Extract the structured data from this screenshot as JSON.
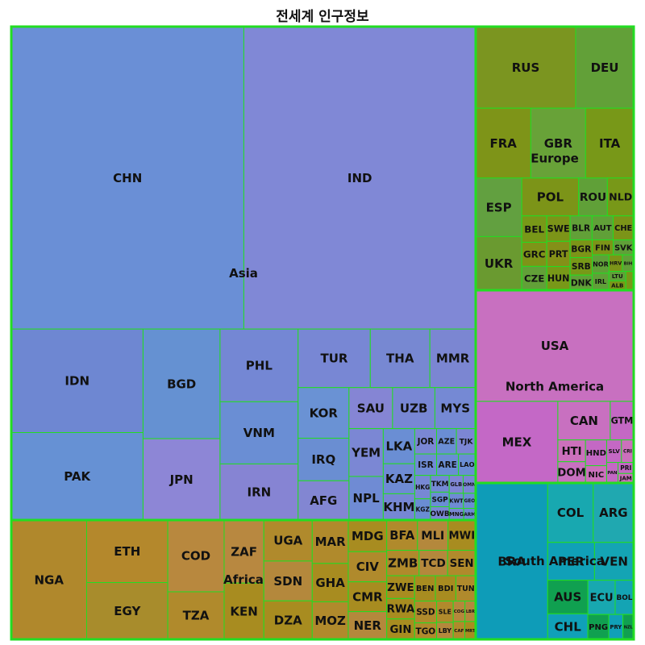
{
  "chart_data": {
    "type": "treemap",
    "title": "전세계 인구정보",
    "border_color": "#22dd22",
    "groups": [
      {
        "name": "Asia",
        "color": "#6b8fd6",
        "items": [
          {
            "code": "CHN",
            "value": 1412.0,
            "color": "#6a8fd6"
          },
          {
            "code": "IND",
            "value": 1408.0,
            "color": "#8088d6"
          },
          {
            "code": "IDN",
            "value": 273.8,
            "color": "#6e87d2"
          },
          {
            "code": "PAK",
            "value": 231.4,
            "color": "#6691d4"
          },
          {
            "code": "BGD",
            "value": 169.4,
            "color": "#6591d2"
          },
          {
            "code": "JPN",
            "value": 125.7,
            "color": "#8d86d6"
          },
          {
            "code": "PHL",
            "value": 113.9,
            "color": "#7487d4"
          },
          {
            "code": "VNM",
            "value": 97.5,
            "color": "#6a8ed4"
          },
          {
            "code": "TUR",
            "value": 84.8,
            "color": "#7887d4"
          },
          {
            "code": "IRN",
            "value": 87.9,
            "color": "#8684d3"
          },
          {
            "code": "THA",
            "value": 70.0,
            "color": "#7788d2"
          },
          {
            "code": "KOR",
            "value": 51.7,
            "color": "#6a92d4"
          },
          {
            "code": "MMR",
            "value": 53.8,
            "color": "#7b86d2"
          },
          {
            "code": "IRQ",
            "value": 43.5,
            "color": "#6a8ed2"
          },
          {
            "code": "SAU",
            "value": 35.9,
            "color": "#8585d4"
          },
          {
            "code": "NPL",
            "value": 30.0,
            "color": "#6f8bd4"
          },
          {
            "code": "AFG",
            "value": 40.1,
            "color": "#8286d2"
          },
          {
            "code": "UZB",
            "value": 34.9,
            "color": "#7887d4"
          },
          {
            "code": "MYS",
            "value": 33.6,
            "color": "#7589d4"
          },
          {
            "code": "YEM",
            "value": 32.9,
            "color": "#7b87d4"
          },
          {
            "code": "LKA",
            "value": 22.2,
            "color": "#6a8ed4"
          },
          {
            "code": "KAZ",
            "value": 19.0,
            "color": "#6e8bd4"
          },
          {
            "code": "KHM",
            "value": 16.6,
            "color": "#7687d4"
          },
          {
            "code": "AZE",
            "value": 10.1,
            "color": "#6a8ed4"
          },
          {
            "code": "TJK",
            "value": 9.8,
            "color": "#7c86d4"
          },
          {
            "code": "LAO",
            "value": 7.4,
            "color": "#6b8ed4"
          },
          {
            "code": "JOR",
            "value": 11.1,
            "color": "#7a87d4"
          },
          {
            "code": "KGZ",
            "value": 6.7,
            "color": "#6a8dd4"
          },
          {
            "code": "ISR",
            "value": 9.4,
            "color": "#6f8bd4"
          },
          {
            "code": "TKM",
            "value": 6.3,
            "color": "#7489d4"
          },
          {
            "code": "GEO",
            "value": 3.7,
            "color": "#6b8dd4"
          },
          {
            "code": "OWB",
            "value": 5.0,
            "color": "#7a87d4"
          },
          {
            "code": "GLB",
            "value": 5.0,
            "color": "#8086d4"
          },
          {
            "code": "ARE",
            "value": 9.4,
            "color": "#6a8ed4"
          },
          {
            "code": "OMN",
            "value": 4.5,
            "color": "#7b87d4"
          },
          {
            "code": "ARM",
            "value": 2.8,
            "color": "#6e8bd4"
          },
          {
            "code": "HKG",
            "value": 7.4,
            "color": "#7788d4"
          },
          {
            "code": "SGP",
            "value": 5.5,
            "color": "#6a8ed4"
          },
          {
            "code": "MNG",
            "value": 3.4,
            "color": "#7a87d4"
          },
          {
            "code": "KWT",
            "value": 4.3,
            "color": "#6f8bd4"
          }
        ]
      },
      {
        "name": "Europe",
        "color": "#7a9a2a",
        "items": [
          {
            "code": "RUS",
            "value": 143.4,
            "color": "#7b9520"
          },
          {
            "code": "DEU",
            "value": 83.2,
            "color": "#62a038"
          },
          {
            "code": "FRA",
            "value": 67.7,
            "color": "#7e9418"
          },
          {
            "code": "GBR",
            "value": 67.3,
            "color": "#68a238"
          },
          {
            "code": "ITA",
            "value": 59.1,
            "color": "#789818"
          },
          {
            "code": "UKR",
            "value": 43.5,
            "color": "#6a9a30"
          },
          {
            "code": "ESP",
            "value": 47.4,
            "color": "#62a040"
          },
          {
            "code": "POL",
            "value": 37.8,
            "color": "#7c9418"
          },
          {
            "code": "ROU",
            "value": 19.1,
            "color": "#60a038"
          },
          {
            "code": "NLD",
            "value": 17.5,
            "color": "#789818"
          },
          {
            "code": "GRC",
            "value": 10.6,
            "color": "#7e9418"
          },
          {
            "code": "PRT",
            "value": 10.3,
            "color": "#849018"
          },
          {
            "code": "BEL",
            "value": 11.6,
            "color": "#789818"
          },
          {
            "code": "BLR",
            "value": 9.3,
            "color": "#62a038"
          },
          {
            "code": "SWE",
            "value": 10.4,
            "color": "#7c9418"
          },
          {
            "code": "AUT",
            "value": 8.9,
            "color": "#60a038"
          },
          {
            "code": "CHE",
            "value": 8.7,
            "color": "#7c9418"
          },
          {
            "code": "CZE",
            "value": 10.5,
            "color": "#62a038"
          },
          {
            "code": "SRB",
            "value": 6.8,
            "color": "#789818"
          },
          {
            "code": "SVK",
            "value": 5.4,
            "color": "#60a038"
          },
          {
            "code": "FIN",
            "value": 5.5,
            "color": "#7c9418"
          },
          {
            "code": "NOR",
            "value": 5.4,
            "color": "#60a038"
          },
          {
            "code": "BGR",
            "value": 6.9,
            "color": "#7c9418"
          },
          {
            "code": "BIH",
            "value": 3.3,
            "color": "#62a038"
          },
          {
            "code": "MDA",
            "value": 2.6,
            "color": "#789818"
          },
          {
            "code": "LTU",
            "value": 2.8,
            "color": "#60a038"
          },
          {
            "code": "HUN",
            "value": 9.7,
            "color": "#789818"
          },
          {
            "code": "DNK",
            "value": 5.9,
            "color": "#62a038"
          },
          {
            "code": "HRV",
            "value": 3.9,
            "color": "#7c9418"
          },
          {
            "code": "IRL",
            "value": 5.0,
            "color": "#60a038"
          },
          {
            "code": "ALB",
            "value": 2.8,
            "color": "#789818"
          }
        ]
      },
      {
        "name": "North America",
        "color": "#c870c0",
        "items": [
          {
            "code": "USA",
            "value": 331.9,
            "color": "#c870c0"
          },
          {
            "code": "MEX",
            "value": 126.7,
            "color": "#c468c6"
          },
          {
            "code": "CAN",
            "value": 38.2,
            "color": "#c870c0"
          },
          {
            "code": "GTM",
            "value": 17.1,
            "color": "#c468c4"
          },
          {
            "code": "HTI",
            "value": 11.4,
            "color": "#cc70bc"
          },
          {
            "code": "SLV",
            "value": 6.3,
            "color": "#c468c4"
          },
          {
            "code": "CRI",
            "value": 5.2,
            "color": "#cc70bc"
          },
          {
            "code": "PRI",
            "value": 3.3,
            "color": "#c468c4"
          },
          {
            "code": "DOM",
            "value": 11.1,
            "color": "#c870c0"
          },
          {
            "code": "HND",
            "value": 10.3,
            "color": "#c468c4"
          },
          {
            "code": "NIC",
            "value": 6.9,
            "color": "#cc70bc"
          },
          {
            "code": "PAN",
            "value": 4.4,
            "color": "#c468c4"
          },
          {
            "code": "JAM",
            "value": 2.8,
            "color": "#cc70bc"
          }
        ]
      },
      {
        "name": "South America",
        "color": "#18a0b8",
        "items": [
          {
            "code": "BRA",
            "value": 214.3,
            "color": "#0e9cb8"
          },
          {
            "code": "COL",
            "value": 51.5,
            "color": "#18a8b0"
          },
          {
            "code": "ARG",
            "value": 45.8,
            "color": "#20a8b0"
          },
          {
            "code": "PER",
            "value": 33.7,
            "color": "#10a0b8"
          },
          {
            "code": "VEN",
            "value": 28.2,
            "color": "#14a4b4"
          },
          {
            "code": "CHL",
            "value": 19.5,
            "color": "#10a0b8"
          },
          {
            "code": "ECU",
            "value": 17.8,
            "color": "#18a8b0"
          },
          {
            "code": "BOL",
            "value": 12.1,
            "color": "#14a4b4"
          },
          {
            "code": "PRY",
            "value": 6.7,
            "color": "#10a0b8"
          },
          {
            "code": "AUS",
            "value": 25.7,
            "color": "#10a050"
          },
          {
            "code": "PNG",
            "value": 9.9,
            "color": "#10a050"
          },
          {
            "code": "NZL",
            "value": 5.1,
            "color": "#10a050"
          }
        ]
      },
      {
        "name": "Africa",
        "color": "#b08a2a",
        "items": [
          {
            "code": "NGA",
            "value": 213.4,
            "color": "#b0882c"
          },
          {
            "code": "ETH",
            "value": 120.3,
            "color": "#b4882c"
          },
          {
            "code": "EGY",
            "value": 109.3,
            "color": "#a88c2c"
          },
          {
            "code": "COD",
            "value": 95.9,
            "color": "#b8883e"
          },
          {
            "code": "ZAF",
            "value": 59.4,
            "color": "#b88840"
          },
          {
            "code": "TZA",
            "value": 63.6,
            "color": "#b08a2c"
          },
          {
            "code": "KEN",
            "value": 53.0,
            "color": "#a88c20"
          },
          {
            "code": "MAR",
            "value": 37.1,
            "color": "#b08a2c"
          },
          {
            "code": "DZA",
            "value": 44.2,
            "color": "#a88c20"
          },
          {
            "code": "UGA",
            "value": 47.1,
            "color": "#b08a2c"
          },
          {
            "code": "SDN",
            "value": 45.7,
            "color": "#b4883c"
          },
          {
            "code": "GHA",
            "value": 32.8,
            "color": "#a88c20"
          },
          {
            "code": "MOZ",
            "value": 32.1,
            "color": "#b08a2c"
          },
          {
            "code": "MDG",
            "value": 28.9,
            "color": "#a88c20"
          },
          {
            "code": "CIV",
            "value": 27.5,
            "color": "#b08a2c"
          },
          {
            "code": "CMR",
            "value": 27.2,
            "color": "#a88c20"
          },
          {
            "code": "BFA",
            "value": 22.1,
            "color": "#b08a2c"
          },
          {
            "code": "NER",
            "value": 25.3,
            "color": "#b4883c"
          },
          {
            "code": "MWI",
            "value": 19.9,
            "color": "#a88c20"
          },
          {
            "code": "SEN",
            "value": 16.9,
            "color": "#b08a2c"
          },
          {
            "code": "MLI",
            "value": 21.9,
            "color": "#b4883c"
          },
          {
            "code": "ZWE",
            "value": 15.1,
            "color": "#a88c20"
          },
          {
            "code": "TUN",
            "value": 11.9,
            "color": "#b08a2c"
          },
          {
            "code": "RWA",
            "value": 13.5,
            "color": "#a88c20"
          },
          {
            "code": "TCD",
            "value": 17.2,
            "color": "#b4883c"
          },
          {
            "code": "ZMB",
            "value": 19.5,
            "color": "#b08a2c"
          },
          {
            "code": "GIN",
            "value": 13.5,
            "color": "#a88c20"
          },
          {
            "code": "SLE",
            "value": 8.4,
            "color": "#b08a2c"
          },
          {
            "code": "LBY",
            "value": 6.7,
            "color": "#b4883c"
          },
          {
            "code": "BDI",
            "value": 12.3,
            "color": "#a88c20"
          },
          {
            "code": "TGO",
            "value": 8.6,
            "color": "#b08a2c"
          },
          {
            "code": "LBR",
            "value": 5.2,
            "color": "#b4883c"
          },
          {
            "code": "MRT",
            "value": 4.6,
            "color": "#a88c20"
          },
          {
            "code": "SSD",
            "value": 11.4,
            "color": "#b08a2c"
          },
          {
            "code": "BEN",
            "value": 12.5,
            "color": "#a88c20"
          },
          {
            "code": "CAF",
            "value": 4.9,
            "color": "#b08a2c"
          },
          {
            "code": "COG",
            "value": 5.7,
            "color": "#b4883c"
          }
        ]
      }
    ]
  }
}
